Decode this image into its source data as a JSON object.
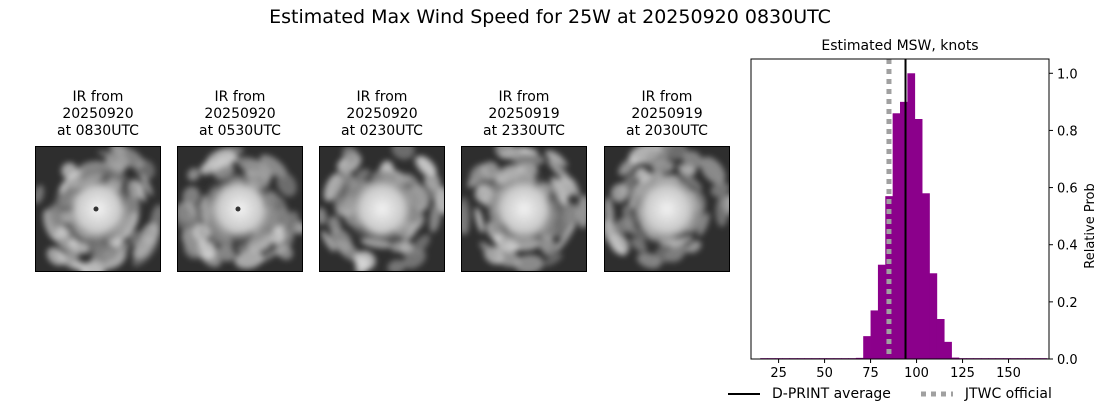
{
  "title": "Estimated Max Wind Speed for 25W at 20250920 0830UTC",
  "ir_panels": [
    {
      "caption": "IR from\n20250920\nat 0830UTC",
      "eye": true
    },
    {
      "caption": "IR from\n20250920\nat 0530UTC",
      "eye": true
    },
    {
      "caption": "IR from\n20250920\nat 0230UTC",
      "eye": false
    },
    {
      "caption": "IR from\n20250919\nat 2330UTC",
      "eye": false
    },
    {
      "caption": "IR from\n20250919\nat 2030UTC",
      "eye": false
    }
  ],
  "chart_data": {
    "type": "bar",
    "title": "Estimated MSW, knots",
    "ylabel": "Relative Prob",
    "xlim": [
      10,
      172
    ],
    "ylim": [
      0,
      1.05
    ],
    "xticks": [
      25,
      50,
      75,
      100,
      125,
      150
    ],
    "yticks": [
      0.0,
      0.2,
      0.4,
      0.6,
      0.8,
      1.0
    ],
    "bin_width": 4,
    "bin_starts": [
      15,
      19,
      23,
      27,
      31,
      35,
      39,
      43,
      47,
      51,
      55,
      59,
      63,
      67,
      71,
      75,
      79,
      83,
      87,
      91,
      95,
      99,
      103,
      107,
      111,
      115,
      119,
      123,
      127,
      131,
      135,
      139,
      143,
      147,
      151,
      155,
      159,
      163,
      167
    ],
    "values": [
      0.003,
      0.003,
      0.003,
      0.003,
      0.003,
      0.003,
      0.003,
      0.003,
      0.003,
      0.003,
      0.003,
      0.003,
      0.003,
      0.004,
      0.08,
      0.17,
      0.33,
      0.57,
      0.86,
      0.9,
      1.0,
      0.84,
      0.58,
      0.3,
      0.14,
      0.06,
      0.005,
      0.003,
      0.003,
      0.003,
      0.003,
      0.003,
      0.003,
      0.003,
      0.003,
      0.003,
      0.003,
      0.003,
      0.003
    ],
    "bar_color": "#8b008b",
    "dprint_average": 94,
    "jtwc_official": 85,
    "legend": [
      {
        "label": "D-PRINT average",
        "color": "#000000",
        "style": "solid"
      },
      {
        "label": "JTWC official",
        "color": "#a0a0a0",
        "style": "dotted"
      }
    ]
  }
}
